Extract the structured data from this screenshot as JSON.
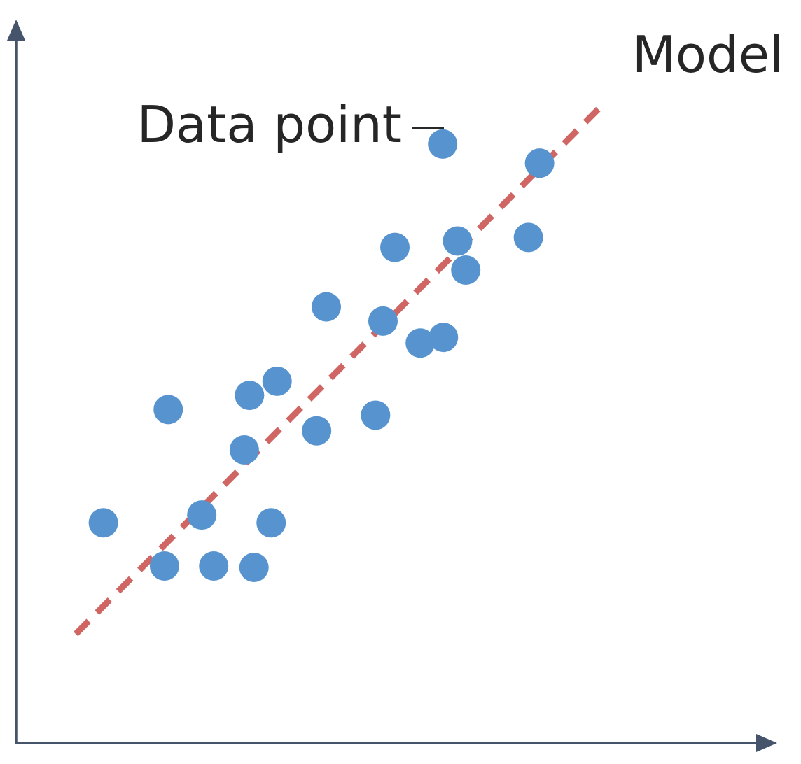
{
  "chart_data": {
    "type": "scatter",
    "title": "",
    "xlabel": "",
    "ylabel": "",
    "grid": false,
    "xlim": [
      0,
      100
    ],
    "ylim": [
      0,
      100
    ],
    "points": [
      {
        "x": 11.7,
        "y": 31.1
      },
      {
        "x": 19.9,
        "y": 25.0
      },
      {
        "x": 26.5,
        "y": 25.0
      },
      {
        "x": 31.9,
        "y": 24.8
      },
      {
        "x": 24.9,
        "y": 32.2
      },
      {
        "x": 34.2,
        "y": 31.1
      },
      {
        "x": 20.4,
        "y": 47.1
      },
      {
        "x": 30.6,
        "y": 41.4
      },
      {
        "x": 31.3,
        "y": 49.1
      },
      {
        "x": 35.0,
        "y": 51.1
      },
      {
        "x": 40.3,
        "y": 44.1
      },
      {
        "x": 48.2,
        "y": 46.3
      },
      {
        "x": 41.6,
        "y": 61.6
      },
      {
        "x": 49.2,
        "y": 59.6
      },
      {
        "x": 54.2,
        "y": 56.5
      },
      {
        "x": 57.3,
        "y": 57.3
      },
      {
        "x": 50.8,
        "y": 70.0
      },
      {
        "x": 59.2,
        "y": 70.9
      },
      {
        "x": 60.3,
        "y": 66.8
      },
      {
        "x": 68.7,
        "y": 71.4
      },
      {
        "x": 70.2,
        "y": 81.9
      },
      {
        "x": 57.2,
        "y": 84.6
      }
    ],
    "model_line": {
      "x": [
        8.0,
        78.8
      ],
      "y": [
        15.4,
        90.3
      ]
    },
    "annotations": [
      {
        "text": "Model",
        "target": "model-line"
      },
      {
        "text": "Data point",
        "target": "point-22"
      }
    ],
    "colors": {
      "points": "#5794cf",
      "model": "#cf6663",
      "axes": "#45546a",
      "text": "#262626"
    }
  }
}
